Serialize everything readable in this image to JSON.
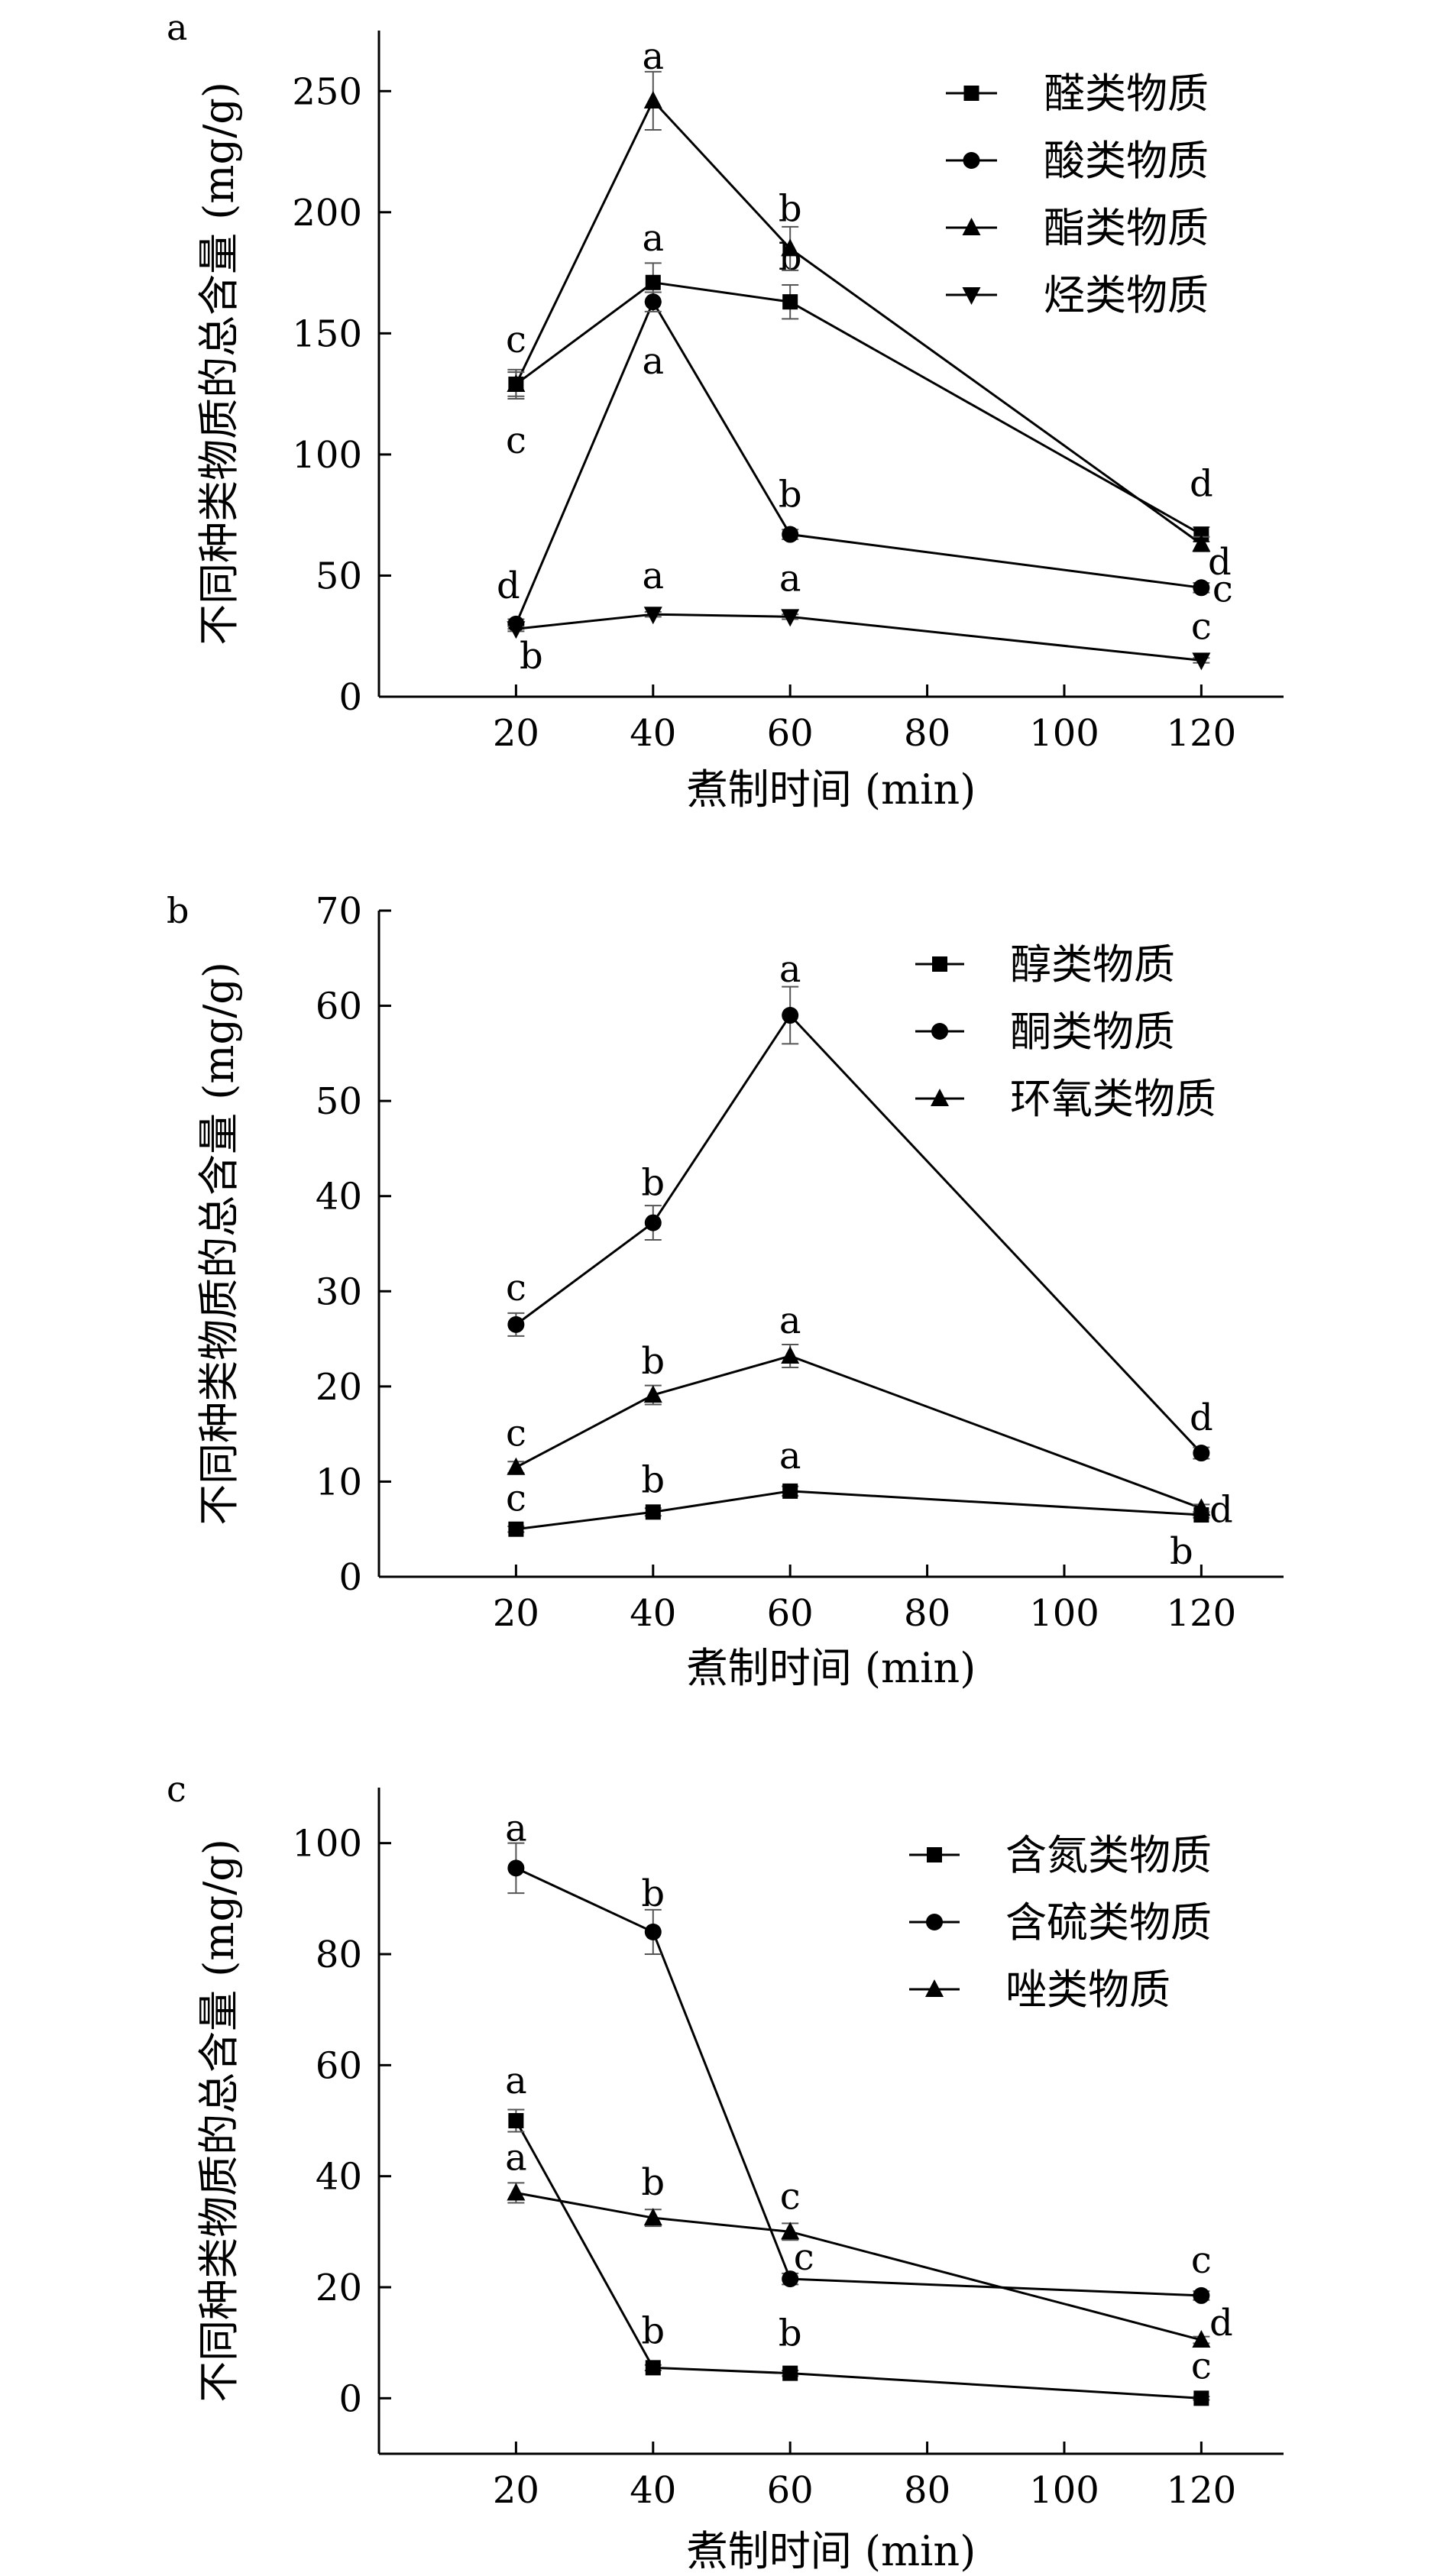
{
  "chart_data": [
    {
      "type": "line",
      "panel_label": "a",
      "xlabel": "煮制时间 (min)",
      "ylabel": "不同种类物质的总含量 (mg/g)",
      "x": [
        20,
        40,
        60,
        120
      ],
      "xlim": [
        0,
        132
      ],
      "xticks": [
        20,
        40,
        60,
        80,
        100,
        120
      ],
      "ylim": [
        0,
        275
      ],
      "yticks": [
        0,
        50,
        100,
        150,
        200,
        250
      ],
      "legend_position": "top-right",
      "series": [
        {
          "name": "醛类物质",
          "marker": "square",
          "values": [
            129,
            171,
            163,
            67
          ],
          "errors": [
            6,
            8,
            7,
            3
          ],
          "labels": [
            "c",
            "a",
            "b",
            "d"
          ]
        },
        {
          "name": "酸类物质",
          "marker": "circle",
          "values": [
            30,
            163,
            67,
            45
          ],
          "errors": [
            2,
            4,
            2,
            2
          ],
          "labels": [
            "d",
            "a",
            "b",
            "c"
          ]
        },
        {
          "name": "酯类物质",
          "marker": "triangle-up",
          "values": [
            129,
            246,
            185,
            63
          ],
          "errors": [
            5,
            12,
            9,
            3
          ],
          "labels": [
            "c",
            "a",
            "b",
            "d"
          ]
        },
        {
          "name": "烃类物质",
          "marker": "triangle-down",
          "values": [
            28,
            34,
            33,
            15
          ],
          "errors": [
            1,
            1,
            1,
            1
          ],
          "labels": [
            "b",
            "a",
            "a",
            "c"
          ]
        }
      ]
    },
    {
      "type": "line",
      "panel_label": "b",
      "xlabel": "煮制时间 (min)",
      "ylabel": "不同种类物质的总含量 (mg/g)",
      "x": [
        20,
        40,
        60,
        120
      ],
      "xlim": [
        0,
        132
      ],
      "xticks": [
        20,
        40,
        60,
        80,
        100,
        120
      ],
      "ylim": [
        0,
        70
      ],
      "yticks": [
        0,
        10,
        20,
        30,
        40,
        50,
        60,
        70
      ],
      "legend_position": "top-right",
      "series": [
        {
          "name": "醇类物质",
          "marker": "square",
          "values": [
            5,
            6.8,
            9,
            6.5
          ],
          "errors": [
            0.3,
            0.4,
            0.5,
            0.3
          ],
          "labels": [
            "c",
            "b",
            "a",
            "b"
          ]
        },
        {
          "name": "酮类物质",
          "marker": "circle",
          "values": [
            26.5,
            37.2,
            59,
            13
          ],
          "errors": [
            1.2,
            1.8,
            3,
            0.6
          ],
          "labels": [
            "c",
            "b",
            "a",
            "d"
          ]
        },
        {
          "name": "环氧类物质",
          "marker": "triangle-up",
          "values": [
            11.5,
            19.1,
            23.2,
            7.2
          ],
          "errors": [
            0.6,
            1,
            1.2,
            0.4
          ],
          "labels": [
            "c",
            "b",
            "a",
            "d"
          ]
        }
      ]
    },
    {
      "type": "line",
      "panel_label": "c",
      "xlabel": "煮制时间 (min)",
      "ylabel": "不同种类物质的总含量 (mg/g)",
      "x": [
        20,
        40,
        60,
        120
      ],
      "xlim": [
        0,
        132
      ],
      "xticks": [
        20,
        40,
        60,
        80,
        100,
        120
      ],
      "ylim": [
        -10,
        110
      ],
      "yticks": [
        0,
        20,
        40,
        60,
        80,
        100
      ],
      "legend_position": "top-right",
      "series": [
        {
          "name": "含氮类物质",
          "marker": "square",
          "values": [
            50,
            5.5,
            4.5,
            0
          ],
          "errors": [
            2,
            0.5,
            0.5,
            0.3
          ],
          "labels": [
            "a",
            "b",
            "b",
            "c"
          ]
        },
        {
          "name": "含硫类物质",
          "marker": "circle",
          "values": [
            95.5,
            84,
            21.5,
            18.5
          ],
          "errors": [
            4.5,
            4,
            1,
            0.8
          ],
          "labels": [
            "a",
            "b",
            "c",
            "c"
          ]
        },
        {
          "name": "唑类物质",
          "marker": "triangle-up",
          "values": [
            37,
            32.5,
            30,
            10.5
          ],
          "errors": [
            1.8,
            1.5,
            1.5,
            0.6
          ],
          "labels": [
            "a",
            "b",
            "c",
            "d"
          ]
        }
      ]
    }
  ]
}
